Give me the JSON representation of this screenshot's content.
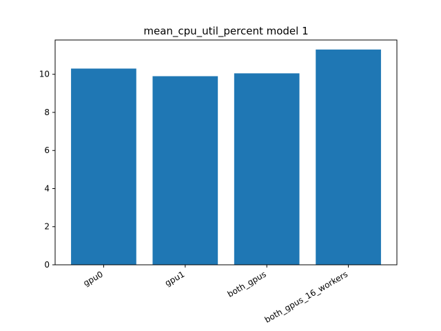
{
  "chart_data": {
    "type": "bar",
    "title": "mean_cpu_util_percent model 1",
    "xlabel": "",
    "ylabel": "",
    "categories": [
      "gpu0",
      "gpu1",
      "both_gpus",
      "both_gpus_16_workers"
    ],
    "values": [
      10.3,
      9.9,
      10.05,
      11.3
    ],
    "ylim": [
      0,
      11.8
    ],
    "yticks": [
      0,
      2,
      4,
      6,
      8,
      10
    ],
    "ytick_labels": [
      "0",
      "2",
      "4",
      "6",
      "8",
      "10"
    ],
    "bar_color": "#1f77b4",
    "grid": false,
    "legend": "none"
  }
}
